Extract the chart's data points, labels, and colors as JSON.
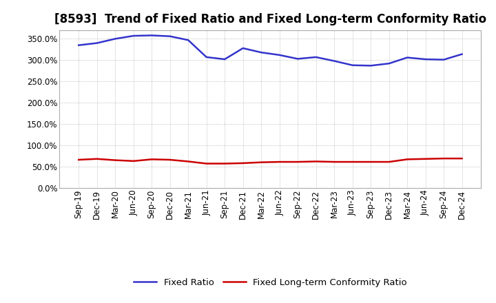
{
  "title": "[8593]  Trend of Fixed Ratio and Fixed Long-term Conformity Ratio",
  "x_labels": [
    "Sep-19",
    "Dec-19",
    "Mar-20",
    "Jun-20",
    "Sep-20",
    "Dec-20",
    "Mar-21",
    "Jun-21",
    "Sep-21",
    "Dec-21",
    "Mar-22",
    "Jun-22",
    "Sep-22",
    "Dec-22",
    "Mar-23",
    "Jun-23",
    "Sep-23",
    "Dec-23",
    "Mar-24",
    "Jun-24",
    "Sep-24",
    "Dec-24"
  ],
  "fixed_ratio": [
    335,
    340,
    350,
    357,
    358,
    356,
    347,
    307,
    302,
    328,
    318,
    312,
    303,
    307,
    298,
    288,
    287,
    292,
    306,
    302,
    301,
    314
  ],
  "fixed_lt_ratio": [
    66,
    68,
    65,
    63,
    67,
    66,
    62,
    57,
    57,
    58,
    60,
    61,
    61,
    62,
    61,
    61,
    61,
    61,
    67,
    68,
    69,
    69
  ],
  "ylim_min": 0,
  "ylim_max": 370,
  "yticks": [
    0,
    50,
    100,
    150,
    200,
    250,
    300,
    350
  ],
  "fixed_ratio_color": "#3333CC",
  "fixed_lt_ratio_color": "#CC0000",
  "background_color": "#FFFFFF",
  "grid_color": "#AAAAAA",
  "legend_fixed_ratio": "Fixed Ratio",
  "legend_fixed_lt_ratio": "Fixed Long-term Conformity Ratio",
  "title_fontsize": 12,
  "tick_fontsize": 8.5,
  "legend_fontsize": 9.5
}
